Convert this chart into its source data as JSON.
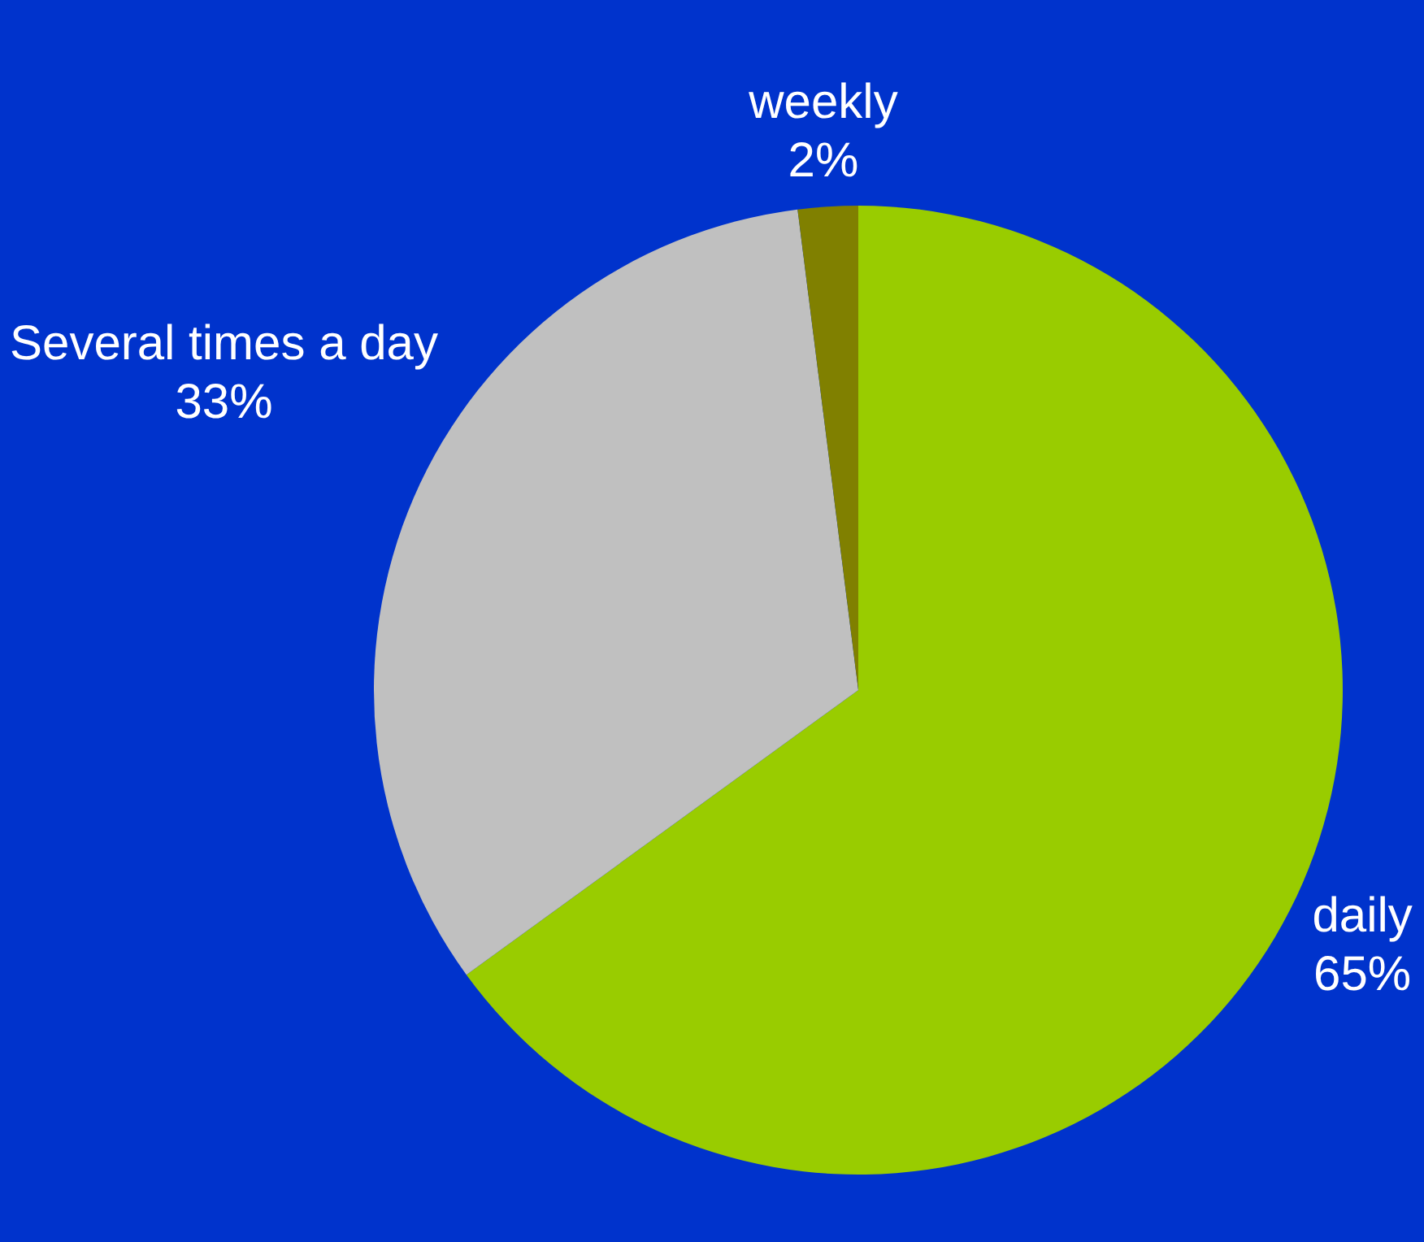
{
  "chart_data": {
    "type": "pie",
    "categories": [
      "daily",
      "Several times a day",
      "weekly"
    ],
    "values": [
      65,
      33,
      2
    ],
    "value_labels": [
      "65%",
      "33%",
      "2%"
    ],
    "colors": [
      "#99cc00",
      "#c0c0c0",
      "#808000"
    ],
    "legend": false
  }
}
